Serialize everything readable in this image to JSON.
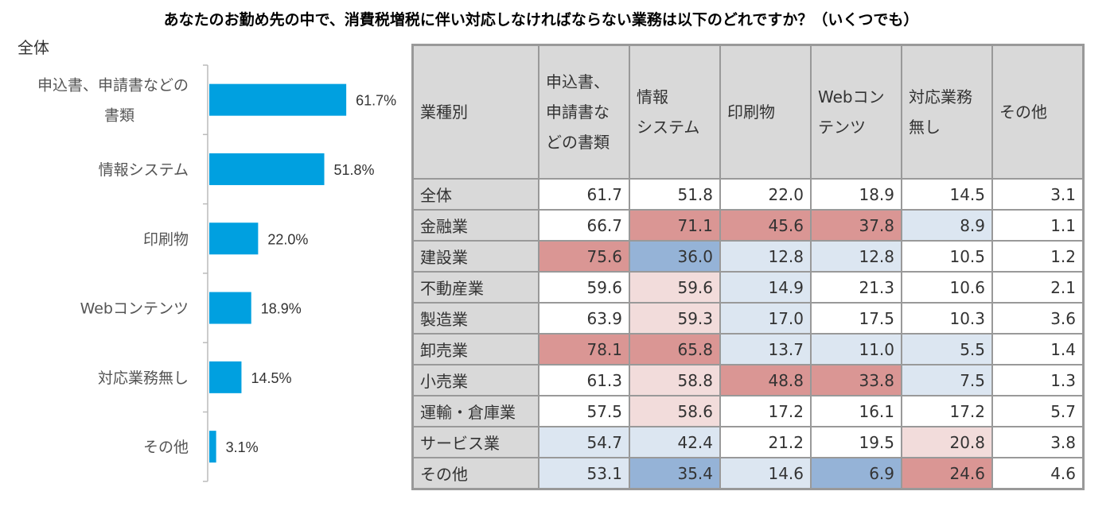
{
  "title": "あなたのお勤め先の中で、消費税増税に伴い対応しなければならない業務は以下のどれですか？（いくつでも）",
  "chart_data": {
    "type": "bar",
    "subtitle": "全体",
    "categories": [
      "申込書、申請書などの書類",
      "情報システム",
      "印刷物",
      "Webコンテンツ",
      "対応業務無し",
      "その他"
    ],
    "values": [
      61.7,
      51.8,
      22.0,
      18.9,
      14.5,
      3.1
    ],
    "value_labels": [
      "61.7%",
      "51.8%",
      "22.0%",
      "18.9%",
      "14.5%",
      "3.1%"
    ],
    "orientation": "horizontal",
    "bar_color": "#00a0e0"
  },
  "table": {
    "headers": [
      "業種別",
      "申込書、\n申請書な\nどの書類",
      "情報\nシステム",
      "印刷物",
      "Webコン\nテンツ",
      "対応業務\n無し",
      "その他"
    ],
    "colors": {
      "r": "#da9694",
      "p": "#f2dcdb",
      "b": "#95b3d7",
      "l": "#dce6f1",
      "w": "#ffffff"
    },
    "rows": [
      {
        "label": "全体",
        "values": [
          "61.7",
          "51.8",
          "22.0",
          "18.9",
          "14.5",
          "3.1"
        ],
        "shade": [
          "w",
          "w",
          "w",
          "w",
          "w",
          "w"
        ]
      },
      {
        "label": "金融業",
        "values": [
          "66.7",
          "71.1",
          "45.6",
          "37.8",
          "8.9",
          "1.1"
        ],
        "shade": [
          "w",
          "r",
          "r",
          "r",
          "l",
          "w"
        ]
      },
      {
        "label": "建設業",
        "values": [
          "75.6",
          "36.0",
          "12.8",
          "12.8",
          "10.5",
          "1.2"
        ],
        "shade": [
          "r",
          "b",
          "l",
          "l",
          "w",
          "w"
        ]
      },
      {
        "label": "不動産業",
        "values": [
          "59.6",
          "59.6",
          "14.9",
          "21.3",
          "10.6",
          "2.1"
        ],
        "shade": [
          "w",
          "p",
          "l",
          "w",
          "w",
          "w"
        ]
      },
      {
        "label": "製造業",
        "values": [
          "63.9",
          "59.3",
          "17.0",
          "17.5",
          "10.3",
          "3.6"
        ],
        "shade": [
          "w",
          "p",
          "l",
          "w",
          "w",
          "w"
        ]
      },
      {
        "label": "卸売業",
        "values": [
          "78.1",
          "65.8",
          "13.7",
          "11.0",
          "5.5",
          "1.4"
        ],
        "shade": [
          "r",
          "r",
          "l",
          "l",
          "l",
          "w"
        ]
      },
      {
        "label": "小売業",
        "values": [
          "61.3",
          "58.8",
          "48.8",
          "33.8",
          "7.5",
          "1.3"
        ],
        "shade": [
          "w",
          "p",
          "r",
          "r",
          "l",
          "w"
        ]
      },
      {
        "label": "運輸・倉庫業",
        "values": [
          "57.5",
          "58.6",
          "17.2",
          "16.1",
          "17.2",
          "5.7"
        ],
        "shade": [
          "w",
          "p",
          "w",
          "w",
          "w",
          "w"
        ]
      },
      {
        "label": "サービス業",
        "values": [
          "54.7",
          "42.4",
          "21.2",
          "19.5",
          "20.8",
          "3.8"
        ],
        "shade": [
          "l",
          "l",
          "w",
          "w",
          "p",
          "w"
        ]
      },
      {
        "label": "その他",
        "values": [
          "53.1",
          "35.4",
          "14.6",
          "6.9",
          "24.6",
          "4.6"
        ],
        "shade": [
          "l",
          "b",
          "l",
          "b",
          "r",
          "w"
        ]
      }
    ]
  }
}
